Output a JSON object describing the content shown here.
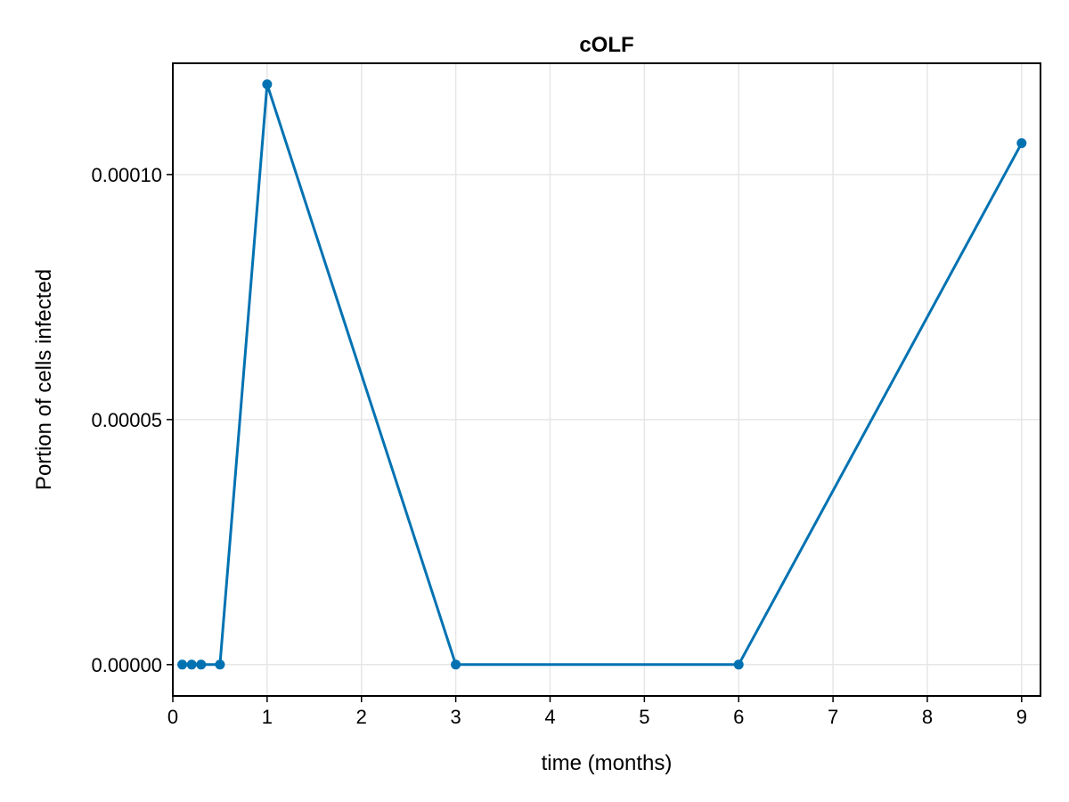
{
  "chart_data": {
    "type": "line",
    "title": "cOLF",
    "xlabel": "time (months)",
    "ylabel": "Portion of cells infected",
    "xlim": [
      0,
      9.2
    ],
    "ylim": [
      -6.4e-06,
      0.0001227
    ],
    "xticks": [
      0,
      1,
      2,
      3,
      4,
      5,
      6,
      7,
      8,
      9
    ],
    "xtick_labels": [
      "0",
      "1",
      "2",
      "3",
      "4",
      "5",
      "6",
      "7",
      "8",
      "9"
    ],
    "yticks": [
      0,
      5e-05,
      0.0001
    ],
    "ytick_labels": [
      "0.00000",
      "0.00005",
      "0.00010"
    ],
    "grid": true,
    "color": "#0072b2",
    "x": [
      0.1,
      0.2,
      0.3,
      0.5,
      1,
      3,
      6,
      9
    ],
    "y": [
      0,
      0,
      0,
      0,
      0.0001184,
      0,
      0,
      0.0001064
    ]
  }
}
